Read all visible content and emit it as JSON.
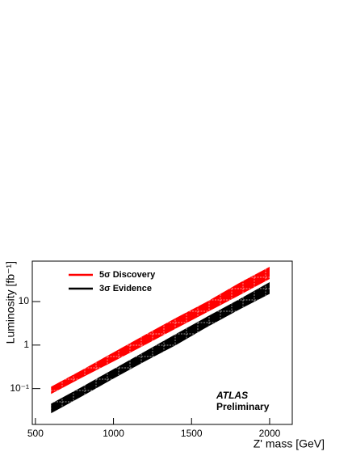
{
  "chart_data": {
    "type": "band",
    "x_label": "Z' mass [GeV]",
    "y_label": "Luminosity [fb⁻¹]",
    "annotations": [
      "ATLAS",
      "Preliminary"
    ],
    "x": [
      600,
      800,
      1000,
      1200,
      1400,
      1600,
      1800,
      2000
    ],
    "series": [
      {
        "name": "5σ Discovery",
        "color": "#ff0000",
        "low": [
          0.075,
          0.18,
          0.42,
          1.0,
          2.4,
          5.7,
          13.6,
          33
        ],
        "high": [
          0.11,
          0.27,
          0.68,
          1.7,
          4.2,
          10,
          26,
          63
        ]
      },
      {
        "name": "3σ Evidence",
        "color": "#000000",
        "low": [
          0.027,
          0.067,
          0.17,
          0.42,
          1.0,
          2.6,
          6.4,
          15
        ],
        "high": [
          0.045,
          0.11,
          0.28,
          0.71,
          1.8,
          4.5,
          11,
          28
        ]
      }
    ],
    "xlim": [
      480,
      2145
    ],
    "xticks": [
      500,
      1000,
      1500,
      2000
    ],
    "ylim": [
      0.015,
      85
    ],
    "yticks": [
      {
        "value": 0.1,
        "label": "10⁻¹"
      },
      1,
      10
    ],
    "log_y": true,
    "legend": "upper-left"
  }
}
